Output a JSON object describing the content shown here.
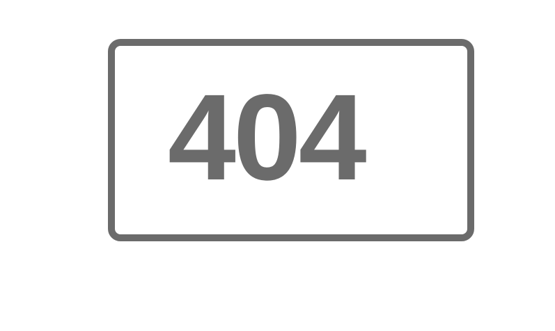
{
  "error": {
    "code": "404"
  },
  "colors": {
    "background": "#ffffff",
    "frame": "#6b6b6b",
    "text": "#6b6b6b"
  }
}
